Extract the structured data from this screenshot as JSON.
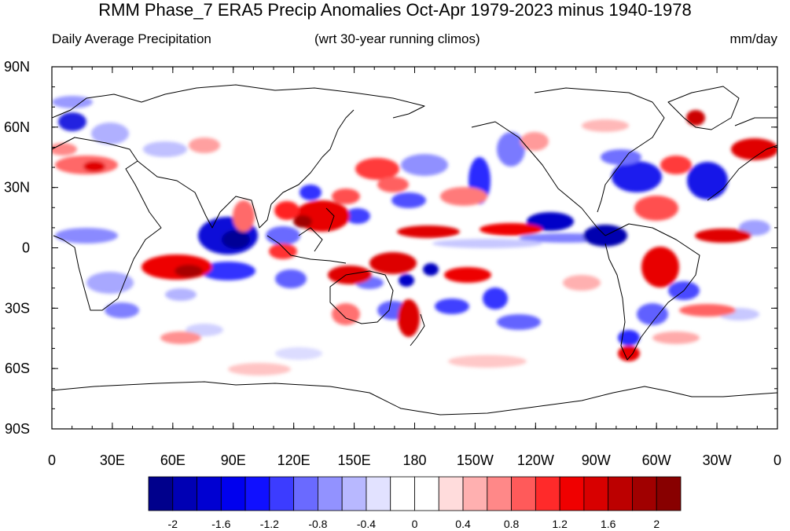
{
  "title": "RMM Phase_7 ERA5 Precip Anomalies Oct-Apr 1979-2023 minus 1940-1978",
  "subtitle_left": "Daily Average Precipitation",
  "subtitle_center": "(wrt 30-year running climos)",
  "subtitle_right": "mm/day",
  "lat_labels": [
    "90N",
    "60N",
    "30N",
    "0",
    "30S",
    "60S",
    "90S"
  ],
  "lon_labels": [
    "0",
    "30E",
    "60E",
    "90E",
    "120E",
    "150E",
    "180",
    "150W",
    "120W",
    "90W",
    "60W",
    "30W",
    "0"
  ],
  "colorbar": {
    "colors": [
      "#00008c",
      "#0000b4",
      "#0000d2",
      "#0000ee",
      "#1010ff",
      "#3c3cff",
      "#6a6aff",
      "#9292ff",
      "#b8b8ff",
      "#e2e2ff",
      "#ffffff",
      "#ffffff",
      "#ffdcdc",
      "#ffb0b0",
      "#ff8888",
      "#ff5a5a",
      "#ff2a2a",
      "#f00000",
      "#d80000",
      "#bc0000",
      "#a00000",
      "#880000"
    ],
    "tick_labels": [
      "-2",
      "-1.6",
      "-1.2",
      "-0.8",
      "-0.4",
      "0",
      "0.4",
      "0.8",
      "1.2",
      "1.6",
      "2"
    ]
  },
  "anomaly_colors": {
    "positive": "#e60000",
    "negative": "#0000dc"
  }
}
